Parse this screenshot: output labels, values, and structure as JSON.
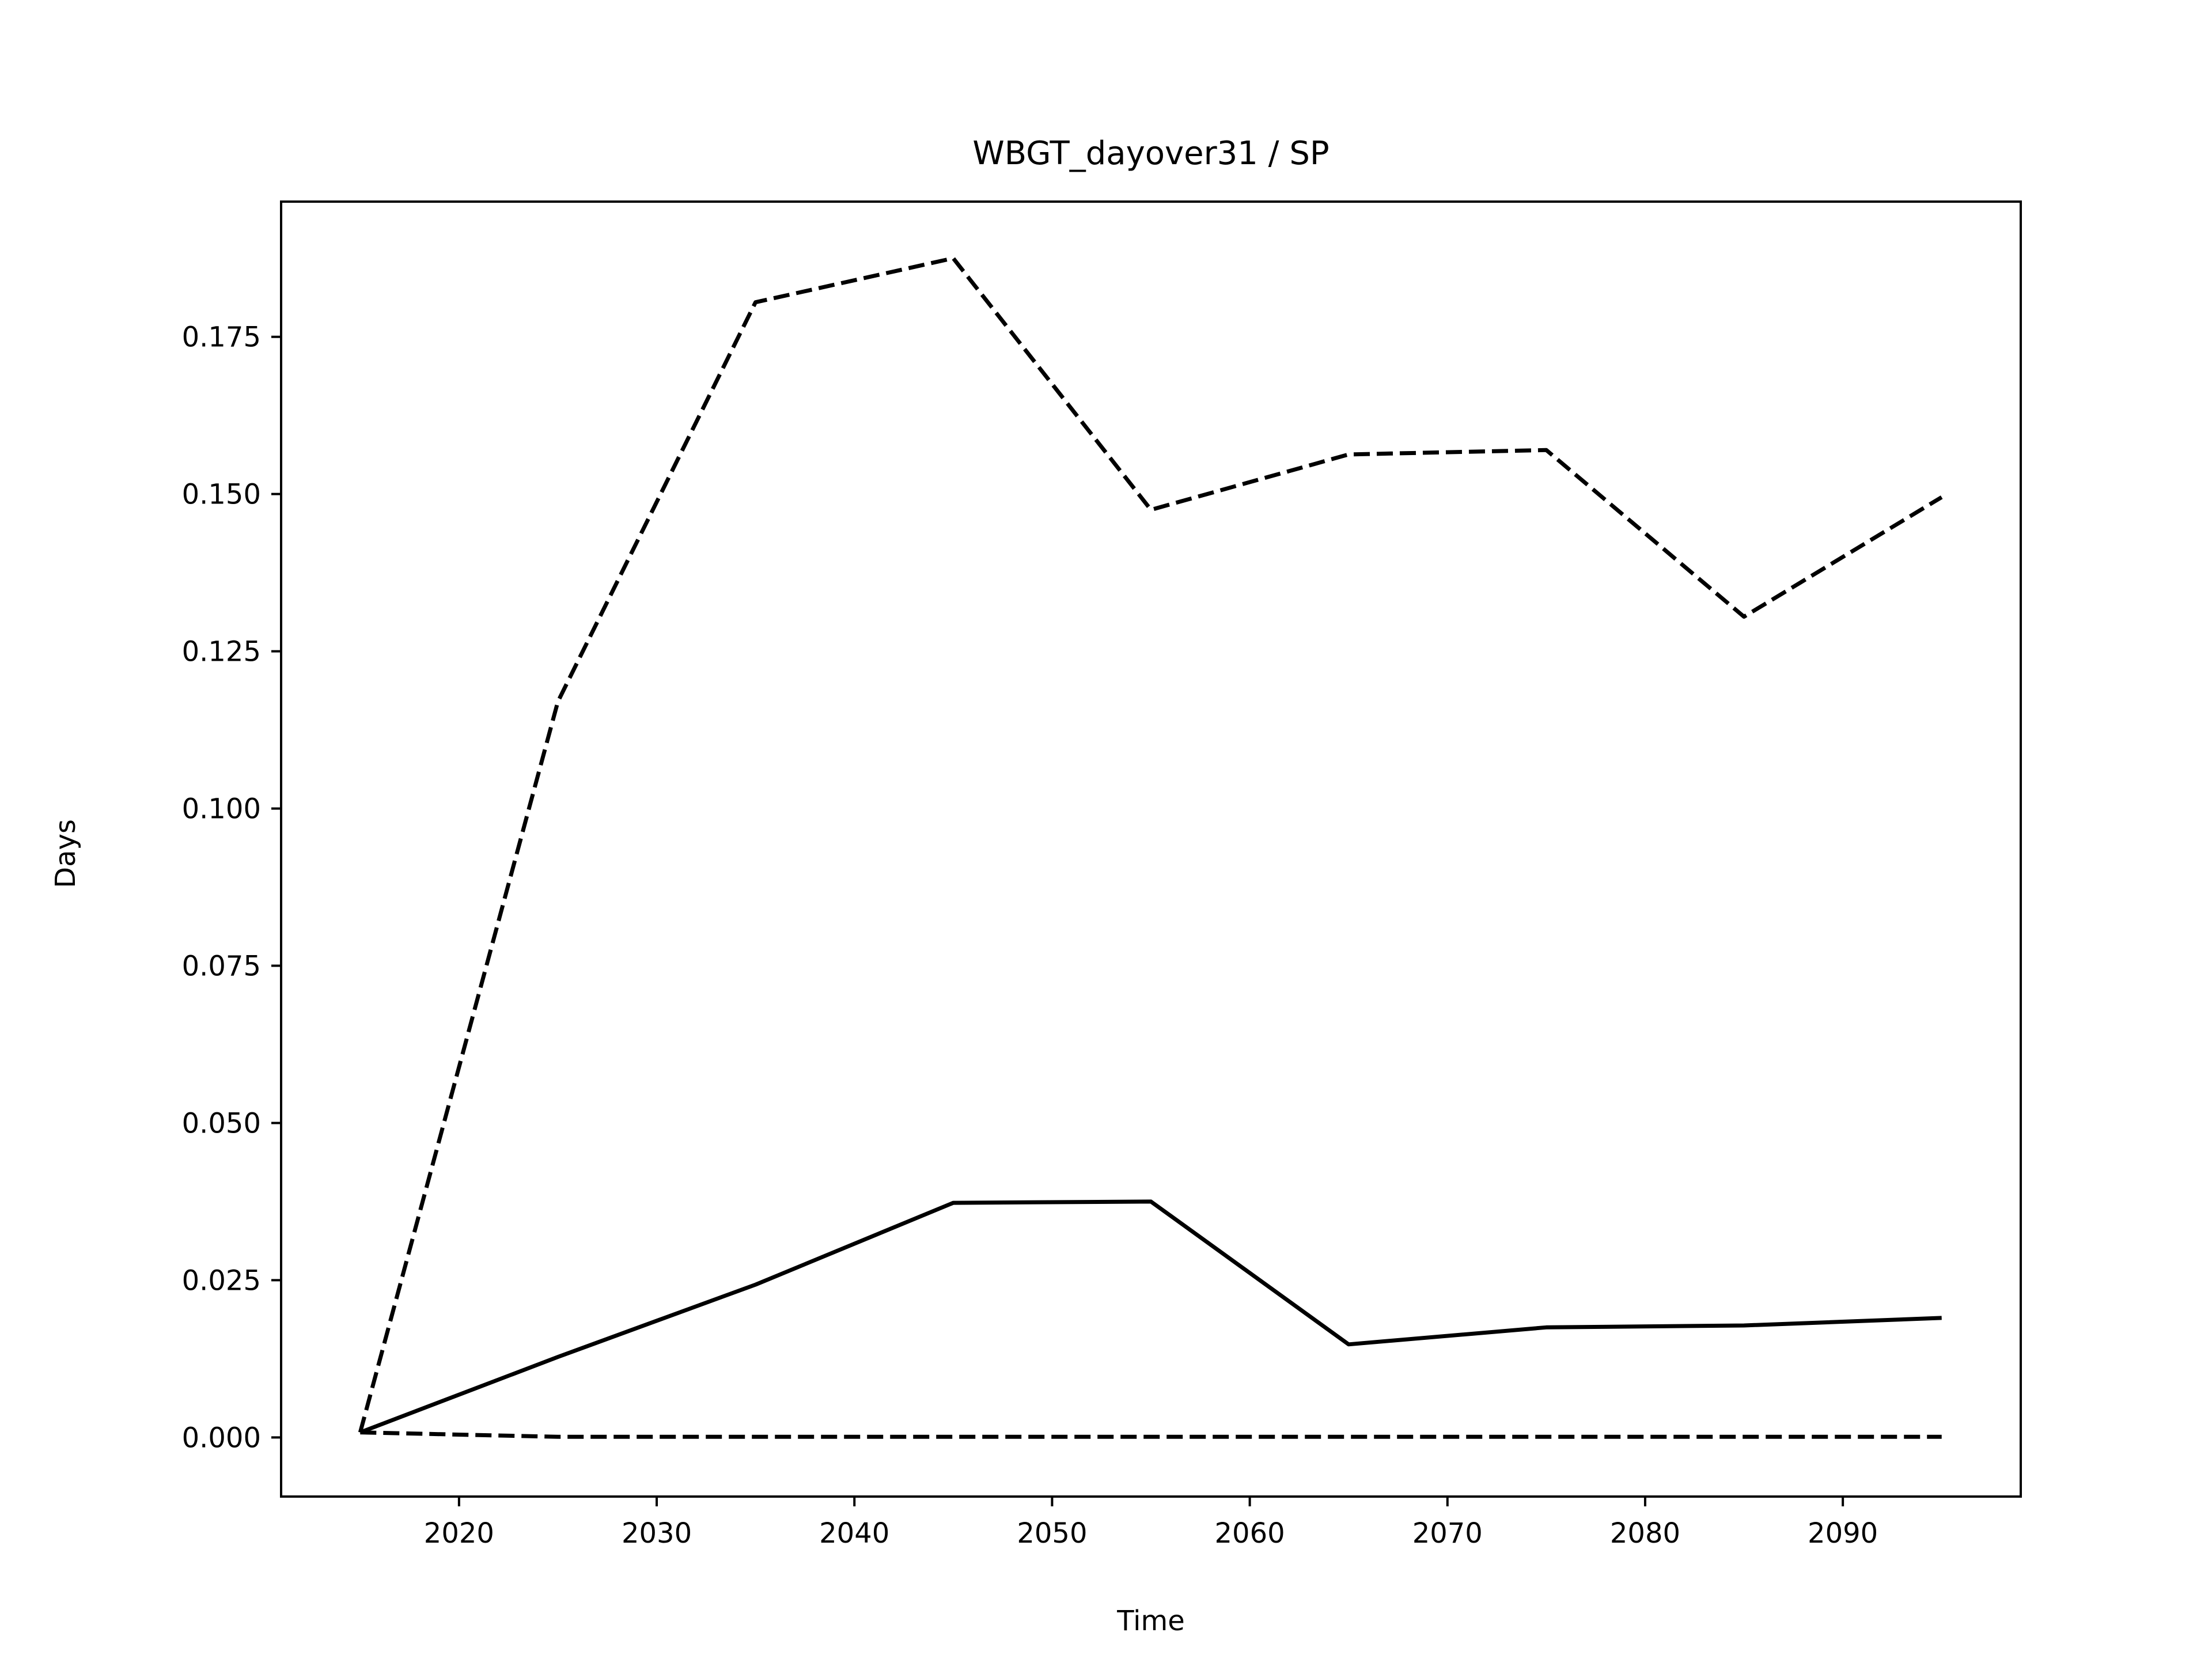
{
  "chart_data": {
    "type": "line",
    "title": "WBGT_dayover31 / SP",
    "xlabel": "Time",
    "ylabel": "Days",
    "xlim": [
      2011,
      2099
    ],
    "ylim": [
      -0.0094,
      0.1965
    ],
    "xticks": [
      2020,
      2030,
      2040,
      2050,
      2060,
      2070,
      2080,
      2090
    ],
    "xtick_labels": [
      "2020",
      "2030",
      "2040",
      "2050",
      "2060",
      "2070",
      "2080",
      "2090"
    ],
    "yticks": [
      0.0,
      0.025,
      0.05,
      0.075,
      0.1,
      0.125,
      0.15,
      0.175
    ],
    "ytick_labels": [
      "0.000",
      "0.025",
      "0.050",
      "0.075",
      "0.100",
      "0.125",
      "0.150",
      "0.175"
    ],
    "grid": false,
    "x": [
      2015,
      2025,
      2035,
      2045,
      2055,
      2065,
      2075,
      2085,
      2095
    ],
    "series": [
      {
        "style": "dashed",
        "color": "#000000",
        "values": [
          0.0008,
          0.117,
          0.1805,
          0.1875,
          0.1475,
          0.1563,
          0.157,
          0.1305,
          0.1495
        ]
      },
      {
        "style": "solid",
        "color": "#000000",
        "values": [
          0.0008,
          0.0128,
          0.0243,
          0.0373,
          0.0375,
          0.0148,
          0.0175,
          0.0178,
          0.019
        ]
      },
      {
        "style": "dashed",
        "color": "#000000",
        "values": [
          0.0008,
          0.0001,
          0.0001,
          0.0001,
          0.0001,
          0.0001,
          0.0001,
          0.0001,
          0.0001
        ]
      }
    ]
  }
}
